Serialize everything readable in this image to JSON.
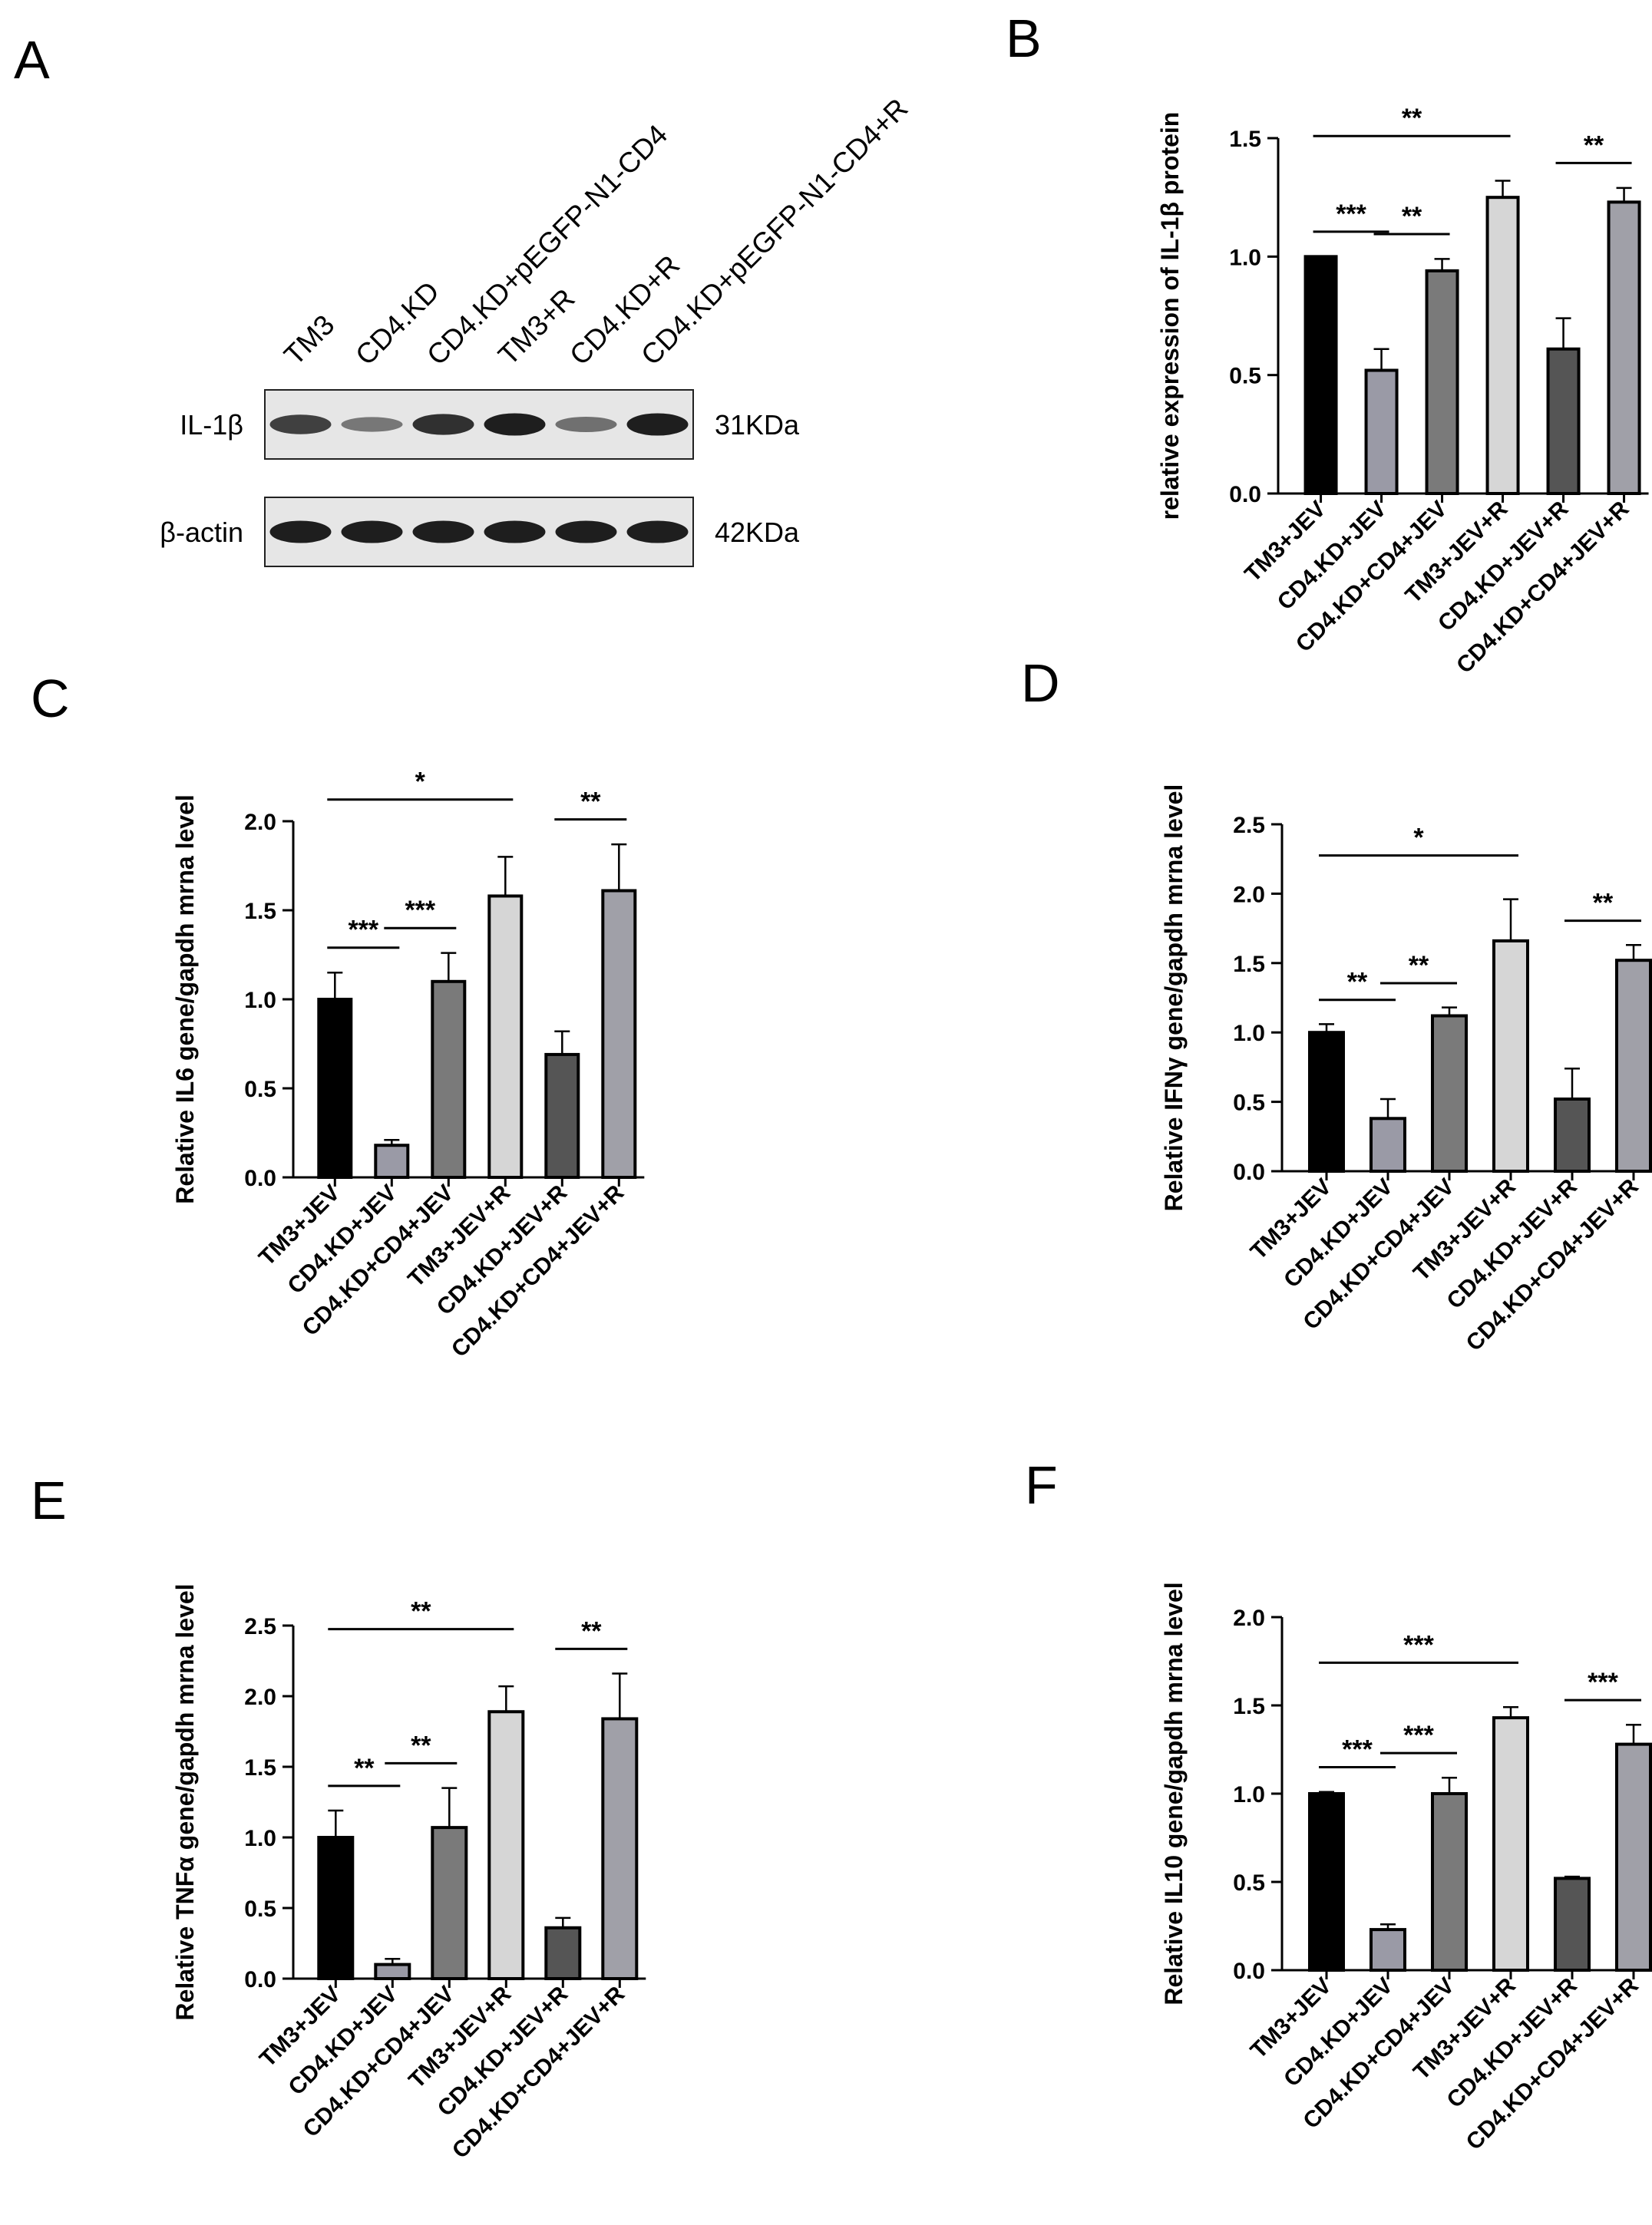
{
  "panels": {
    "A": "A",
    "B": "B",
    "C": "C",
    "D": "D",
    "E": "E",
    "F": "F"
  },
  "western_blot": {
    "lanes": [
      "TM3",
      "CD4.KD",
      "CD4.KD+pEGFP-N1-CD4",
      "TM3+R",
      "CD4.KD+R",
      "CD4.KD+pEGFP-N1-CD4+R"
    ],
    "rows": [
      {
        "label": "IL-1β",
        "size": "31KDa",
        "band_intensity": [
          0.75,
          0.4,
          0.85,
          0.95,
          0.45,
          0.95
        ]
      },
      {
        "label": "β-actin",
        "size": "42KDa",
        "band_intensity": [
          0.95,
          0.95,
          0.95,
          0.95,
          0.95,
          0.95
        ]
      }
    ]
  },
  "colors": {
    "bars": [
      "#000000",
      "#9a9aa6",
      "#7a7a7a",
      "#d6d6d6",
      "#555555",
      "#a0a0a8"
    ]
  },
  "chart_data": [
    {
      "panel": "B",
      "type": "bar",
      "categories": [
        "TM3+JEV",
        "CD4.KD+JEV",
        "CD4.KD+CD4+JEV",
        "TM3+JEV+R",
        "CD4.KD+JEV+R",
        "CD4.KD+CD4+JEV+R"
      ],
      "values": [
        1.0,
        0.52,
        0.94,
        1.25,
        0.61,
        1.23
      ],
      "errors": [
        0,
        0.09,
        0.05,
        0.07,
        0.13,
        0.06
      ],
      "ylabel": "relative expression of IL-1β protein",
      "ylim": [
        0,
        1.5
      ],
      "yticks": [
        "0.0",
        "0.5",
        "1.0",
        "1.5"
      ],
      "significance": [
        {
          "from": 0,
          "to": 3,
          "label": "**"
        },
        {
          "from": 1,
          "to": 2,
          "label": "**"
        },
        {
          "from": 0,
          "to": 1,
          "label": "***"
        },
        {
          "from": 4,
          "to": 5,
          "label": "**"
        }
      ]
    },
    {
      "panel": "C",
      "type": "bar",
      "categories": [
        "TM3+JEV",
        "CD4.KD+JEV",
        "CD4.KD+CD4+JEV",
        "TM3+JEV+R",
        "CD4.KD+JEV+R",
        "CD4.KD+CD4+JEV+R"
      ],
      "values": [
        1.0,
        0.18,
        1.1,
        1.58,
        0.69,
        1.61
      ],
      "errors": [
        0.15,
        0.03,
        0.16,
        0.22,
        0.13,
        0.26
      ],
      "ylabel": "Relative IL6 gene/gapdh mrna level",
      "ylim": [
        0,
        2.0
      ],
      "yticks": [
        "0.0",
        "0.5",
        "1.0",
        "1.5",
        "2.0"
      ],
      "significance": [
        {
          "from": 0,
          "to": 3,
          "label": "*"
        },
        {
          "from": 1,
          "to": 2,
          "label": "***"
        },
        {
          "from": 0,
          "to": 1,
          "label": "***"
        },
        {
          "from": 4,
          "to": 5,
          "label": "**"
        }
      ]
    },
    {
      "panel": "D",
      "type": "bar",
      "categories": [
        "TM3+JEV",
        "CD4.KD+JEV",
        "CD4.KD+CD4+JEV",
        "TM3+JEV+R",
        "CD4.KD+JEV+R",
        "CD4.KD+CD4+JEV+R"
      ],
      "values": [
        1.0,
        0.38,
        1.12,
        1.66,
        0.52,
        1.52
      ],
      "errors": [
        0.06,
        0.14,
        0.06,
        0.3,
        0.22,
        0.11
      ],
      "ylabel": "Relative IFNγ gene/gapdh mrna level",
      "ylim": [
        0,
        2.5
      ],
      "yticks": [
        "0.0",
        "0.5",
        "1.0",
        "1.5",
        "2.0",
        "2.5"
      ],
      "significance": [
        {
          "from": 0,
          "to": 3,
          "label": "*"
        },
        {
          "from": 1,
          "to": 2,
          "label": "**"
        },
        {
          "from": 0,
          "to": 1,
          "label": "**"
        },
        {
          "from": 4,
          "to": 5,
          "label": "**"
        }
      ]
    },
    {
      "panel": "E",
      "type": "bar",
      "categories": [
        "TM3+JEV",
        "CD4.KD+JEV",
        "CD4.KD+CD4+JEV",
        "TM3+JEV+R",
        "CD4.KD+JEV+R",
        "CD4.KD+CD4+JEV+R"
      ],
      "values": [
        1.0,
        0.1,
        1.07,
        1.89,
        0.36,
        1.84
      ],
      "errors": [
        0.19,
        0.04,
        0.28,
        0.18,
        0.07,
        0.32
      ],
      "ylabel": "Relative TNFα gene/gapdh mrna level",
      "ylim": [
        0,
        2.5
      ],
      "yticks": [
        "0.0",
        "0.5",
        "1.0",
        "1.5",
        "2.0",
        "2.5"
      ],
      "significance": [
        {
          "from": 0,
          "to": 3,
          "label": "**"
        },
        {
          "from": 1,
          "to": 2,
          "label": "**"
        },
        {
          "from": 0,
          "to": 1,
          "label": "**"
        },
        {
          "from": 4,
          "to": 5,
          "label": "**"
        }
      ]
    },
    {
      "panel": "F",
      "type": "bar",
      "categories": [
        "TM3+JEV",
        "CD4.KD+JEV",
        "CD4.KD+CD4+JEV",
        "TM3+JEV+R",
        "CD4.KD+JEV+R",
        "CD4.KD+CD4+JEV+R"
      ],
      "values": [
        1.0,
        0.23,
        1.0,
        1.43,
        0.52,
        1.28
      ],
      "errors": [
        0.01,
        0.03,
        0.09,
        0.06,
        0.01,
        0.11
      ],
      "ylabel": "Relative IL10 gene/gapdh mrna level",
      "ylim": [
        0,
        2.0
      ],
      "yticks": [
        "0.0",
        "0.5",
        "1.0",
        "1.5",
        "2.0"
      ],
      "significance": [
        {
          "from": 0,
          "to": 3,
          "label": "***"
        },
        {
          "from": 1,
          "to": 2,
          "label": "***"
        },
        {
          "from": 0,
          "to": 1,
          "label": "***"
        },
        {
          "from": 4,
          "to": 5,
          "label": "***"
        }
      ]
    }
  ]
}
